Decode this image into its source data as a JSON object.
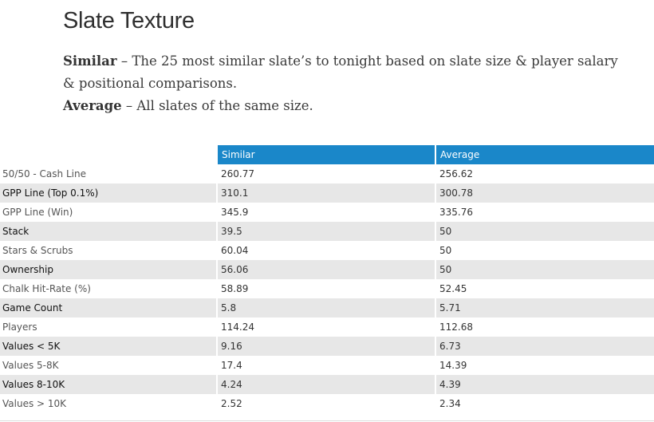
{
  "heading": "Slate Texture",
  "description": {
    "similar_term": "Similar",
    "similar_text": " – The 25 most similar slate’s to tonight based on slate size & player salary & positional comparisons.",
    "average_term": "Average",
    "average_text": " – All slates of the same size."
  },
  "table": {
    "headers": [
      "",
      "Similar",
      "Average"
    ],
    "rows": [
      [
        "50/50 - Cash Line",
        "260.77",
        "256.62"
      ],
      [
        "GPP Line (Top 0.1%)",
        "310.1",
        "300.78"
      ],
      [
        "GPP Line (Win)",
        "345.9",
        "335.76"
      ],
      [
        "Stack",
        "39.5",
        "50"
      ],
      [
        "Stars & Scrubs",
        "60.04",
        "50"
      ],
      [
        "Ownership",
        "56.06",
        "50"
      ],
      [
        "Chalk Hit-Rate (%)",
        "58.89",
        "52.45"
      ],
      [
        "Game Count",
        "5.8",
        "5.71"
      ],
      [
        "Players",
        "114.24",
        "112.68"
      ],
      [
        "Values < 5K",
        "9.16",
        "6.73"
      ],
      [
        "Values 5-8K",
        "17.4",
        "14.39"
      ],
      [
        "Values 8-10K",
        "4.24",
        "4.39"
      ],
      [
        "Values > 10K",
        "2.52",
        "2.34"
      ]
    ]
  },
  "colors": {
    "header_bg": "#1a87c9",
    "stripe_bg": "#e7e7e7"
  }
}
